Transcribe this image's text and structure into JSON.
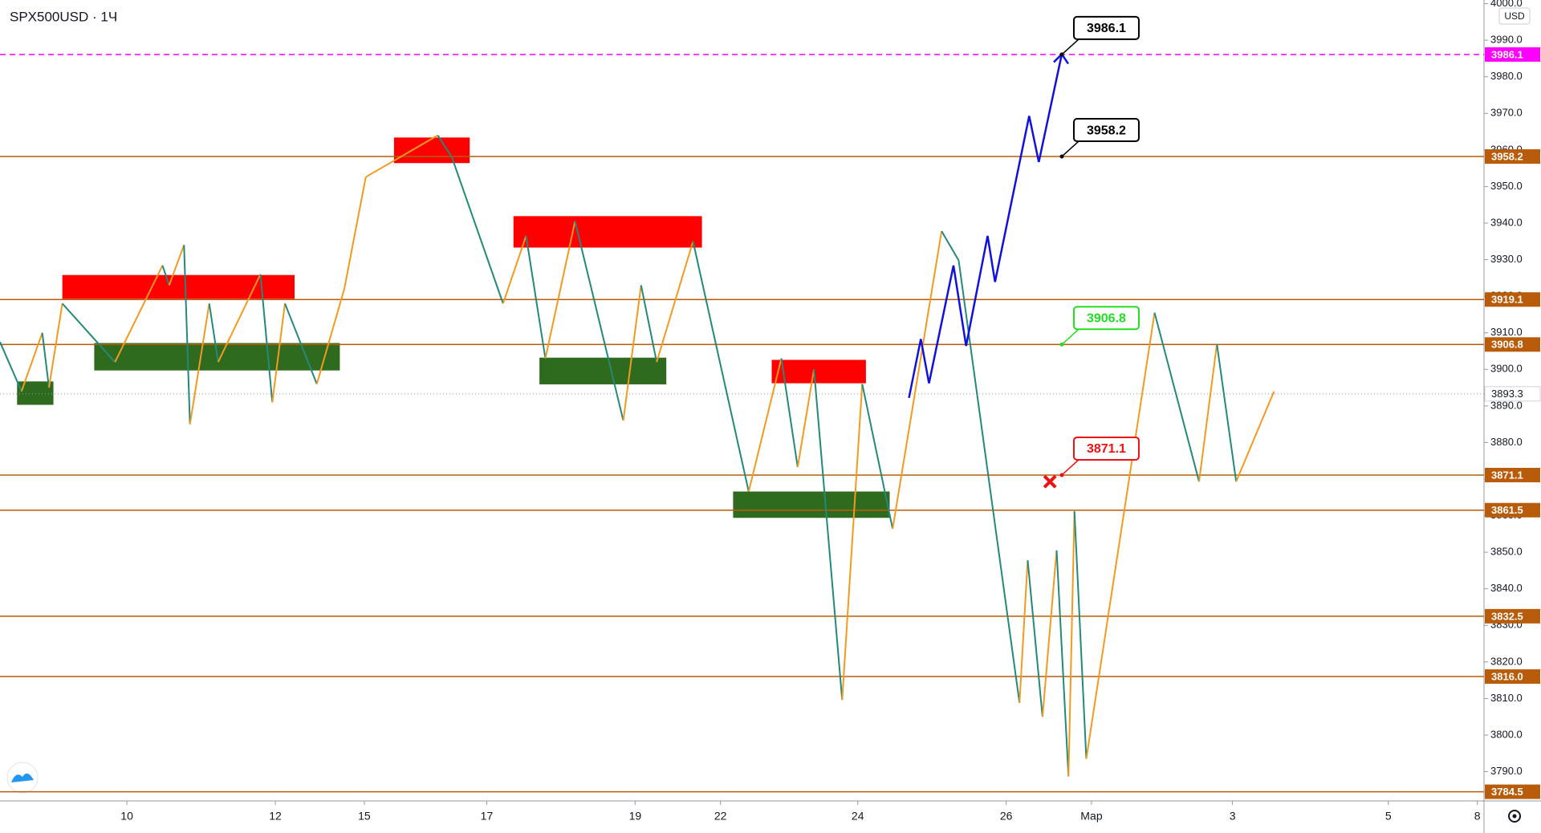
{
  "chart_data": {
    "type": "line",
    "title": "SPX500USD · 1Ч",
    "currency": "USD",
    "xlim": [
      0.29,
      20.29
    ],
    "ylim": [
      3782,
      4001
    ],
    "xticks": [
      {
        "value": 2,
        "label": "10"
      },
      {
        "value": 4,
        "label": "12"
      },
      {
        "value": 5.2,
        "label": "15"
      },
      {
        "value": 6.85,
        "label": "17"
      },
      {
        "value": 8.85,
        "label": "19"
      },
      {
        "value": 10.0,
        "label": "22"
      },
      {
        "value": 11.85,
        "label": "24"
      },
      {
        "value": 13.85,
        "label": "26"
      },
      {
        "value": 15.0,
        "label": "Мар"
      },
      {
        "value": 16.9,
        "label": "3"
      },
      {
        "value": 19,
        "label": "5"
      },
      {
        "value": 20.2,
        "label": "8"
      }
    ],
    "yticks": [
      {
        "value": 4000,
        "label": "4000.0"
      },
      {
        "value": 3990,
        "label": "3990.0"
      },
      {
        "value": 3980,
        "label": "3980.0"
      },
      {
        "value": 3970,
        "label": "3970.0"
      },
      {
        "value": 3960,
        "label": "3960.0"
      },
      {
        "value": 3950,
        "label": "3950.0"
      },
      {
        "value": 3940,
        "label": "3940.0"
      },
      {
        "value": 3930,
        "label": "3930.0"
      },
      {
        "value": 3920,
        "label": "3920.0"
      },
      {
        "value": 3910,
        "label": "3910.0"
      },
      {
        "value": 3900,
        "label": "3900.0"
      },
      {
        "value": 3890,
        "label": "3890.0"
      },
      {
        "value": 3880,
        "label": "3880.0"
      },
      {
        "value": 3870,
        "label": "3870.0"
      },
      {
        "value": 3860,
        "label": "3860.0"
      },
      {
        "value": 3850,
        "label": "3850.0"
      },
      {
        "value": 3840,
        "label": "3840.0"
      },
      {
        "value": 3830,
        "label": "3830.0"
      },
      {
        "value": 3820,
        "label": "3820.0"
      },
      {
        "value": 3810,
        "label": "3810.0"
      },
      {
        "value": 3800,
        "label": "3800.0"
      },
      {
        "value": 3790,
        "label": "3790.0"
      }
    ],
    "x": [
      0.29,
      0.58,
      0.86,
      0.95,
      1.13,
      1.84,
      2.48,
      2.57,
      2.77,
      2.85,
      3.11,
      3.23,
      3.8,
      3.96,
      4.13,
      4.56,
      4.93,
      5.22,
      6.19,
      6.38,
      7.07,
      7.38,
      7.64,
      8.04,
      8.69,
      8.93,
      9.14,
      9.63,
      10.38,
      10.82,
      11.04,
      11.26,
      11.64,
      11.91,
      12.32,
      12.98,
      13.21,
      14.03,
      14.14,
      14.34,
      14.53,
      14.69,
      14.77,
      14.93,
      15.85,
      16.45,
      16.69,
      16.95,
      17.46
    ],
    "values": [
      3907.5,
      3894,
      3910,
      3895,
      3918,
      3902,
      3928.4,
      3923,
      3934,
      3885,
      3918,
      3902,
      3926,
      3891,
      3918,
      3896,
      3922,
      3952.6,
      3964,
      3958,
      3918,
      3936.5,
      3903,
      3940.5,
      3886,
      3923,
      3902,
      3935,
      3866.6,
      3903,
      3873.3,
      3900,
      3809.6,
      3896,
      3856.4,
      3937.8,
      3929.8,
      3808.8,
      3847.8,
      3805,
      3850.5,
      3788.7,
      3861.2,
      3793.5,
      3915.5,
      3869.3,
      3906.9,
      3869.3,
      3894
    ],
    "up_color": "#f39a1e",
    "down_color": "#23897a",
    "last_price": 3893.3,
    "levels": [
      {
        "value": 3986.1,
        "color": "#ff00ff",
        "dashed": true
      },
      {
        "value": 3958.2,
        "color": "#b85c0a"
      },
      {
        "value": 3919.1,
        "color": "#b85c0a"
      },
      {
        "value": 3906.8,
        "color": "#b85c0a"
      },
      {
        "value": 3871.1,
        "color": "#b85c0a"
      },
      {
        "value": 3861.5,
        "color": "#b85c0a"
      },
      {
        "value": 3832.5,
        "color": "#b85c0a"
      },
      {
        "value": 3816.0,
        "label": "3816.0",
        "color": "#b85c0a"
      },
      {
        "value": 3784.5,
        "color": "#b85c0a"
      }
    ],
    "zones": [
      {
        "x": [
          1.13,
          4.26
        ],
        "y": [
          3919.3,
          3925.8
        ],
        "color": "#ff0000"
      },
      {
        "x": [
          1.56,
          4.87
        ],
        "y": [
          3899.7,
          3907.2
        ],
        "color": "#2f6b1e"
      },
      {
        "x": [
          0.52,
          1.01
        ],
        "y": [
          3890.3,
          3896.7
        ],
        "color": "#2f6b1e"
      },
      {
        "x": [
          5.6,
          6.62
        ],
        "y": [
          3956.4,
          3963.4
        ],
        "color": "#ff0000"
      },
      {
        "x": [
          7.21,
          9.75
        ],
        "y": [
          3933.3,
          3941.9
        ],
        "color": "#ff0000"
      },
      {
        "x": [
          7.56,
          9.27
        ],
        "y": [
          3895.9,
          3903.2
        ],
        "color": "#2f6b1e"
      },
      {
        "x": [
          10.69,
          11.96
        ],
        "y": [
          3896.2,
          3902.6
        ],
        "color": "#ff0000"
      },
      {
        "x": [
          10.17,
          12.28
        ],
        "y": [
          3859.4,
          3866.6
        ],
        "color": "#2f6b1e"
      }
    ],
    "projection": {
      "x": [
        12.54,
        12.7,
        12.81,
        13.14,
        13.31,
        13.6,
        13.7,
        14.16,
        14.29,
        14.6
      ],
      "values": [
        3892.2,
        3908.3,
        3896.2,
        3928.4,
        3906.4,
        3936.5,
        3923.9,
        3969.3,
        3956.7,
        3986.2
      ],
      "color": "#1010e0"
    },
    "callouts": [
      {
        "x": 14.6,
        "value": 3986.1,
        "color": "#000000"
      },
      {
        "x": 14.6,
        "value": 3958.2,
        "color": "#000000"
      },
      {
        "x": 14.6,
        "value": 3906.8,
        "color": "#22dd22"
      },
      {
        "x": 14.6,
        "value": 3871.1,
        "color": "#ee1111"
      }
    ],
    "markers": [
      {
        "x": 14.44,
        "value": 3869.3,
        "color": "#ee1111"
      }
    ]
  }
}
